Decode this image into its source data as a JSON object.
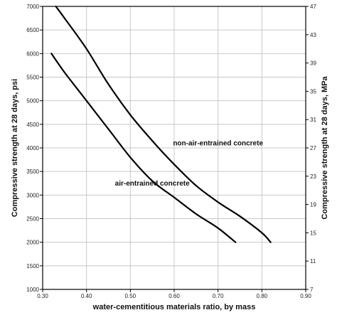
{
  "chart_data": {
    "type": "line",
    "xlabel": "water-cementitious materials ratio, by mass",
    "ylabel": "Compressive strength at 28 days, psi",
    "y2label": "Compressive strength at 28 days, MPa",
    "xlim": [
      0.3,
      0.9
    ],
    "ylim": [
      1000,
      7000
    ],
    "y2lim": [
      7,
      47
    ],
    "x_ticks": [
      "0.30",
      "0.40",
      "0.50",
      "0.60",
      "0.70",
      "0.80",
      "0.90"
    ],
    "x_tick_values": [
      0.3,
      0.4,
      0.5,
      0.6,
      0.7,
      0.8,
      0.9
    ],
    "y_ticks": [
      "1000",
      "1500",
      "2000",
      "2500",
      "3000",
      "3500",
      "4000",
      "4500",
      "5000",
      "5500",
      "6000",
      "6500",
      "7000"
    ],
    "y_tick_values": [
      1000,
      1500,
      2000,
      2500,
      3000,
      3500,
      4000,
      4500,
      5000,
      5500,
      6000,
      6500,
      7000
    ],
    "y2_ticks": [
      "7",
      "11",
      "15",
      "19",
      "23",
      "27",
      "31",
      "35",
      "39",
      "43",
      "47"
    ],
    "y2_tick_values": [
      7,
      11,
      15,
      19,
      23,
      27,
      31,
      35,
      39,
      43,
      47
    ],
    "grid": true,
    "series": [
      {
        "name": "non-air-entrained concrete",
        "x": [
          0.33,
          0.35,
          0.4,
          0.45,
          0.5,
          0.55,
          0.6,
          0.65,
          0.7,
          0.75,
          0.8,
          0.82
        ],
        "y": [
          7000,
          6750,
          6100,
          5350,
          4700,
          4150,
          3650,
          3200,
          2850,
          2550,
          2200,
          2000
        ]
      },
      {
        "name": "air-entrained concrete",
        "x": [
          0.32,
          0.35,
          0.4,
          0.45,
          0.5,
          0.55,
          0.6,
          0.65,
          0.7,
          0.74
        ],
        "y": [
          6000,
          5600,
          5000,
          4400,
          3800,
          3300,
          2950,
          2600,
          2300,
          2000
        ]
      }
    ],
    "annotations": [
      {
        "text": "non-air-entrained concrete",
        "x": 0.7,
        "y": 4050
      },
      {
        "text": "air-entrained concrete",
        "x": 0.55,
        "y": 3200
      }
    ]
  }
}
